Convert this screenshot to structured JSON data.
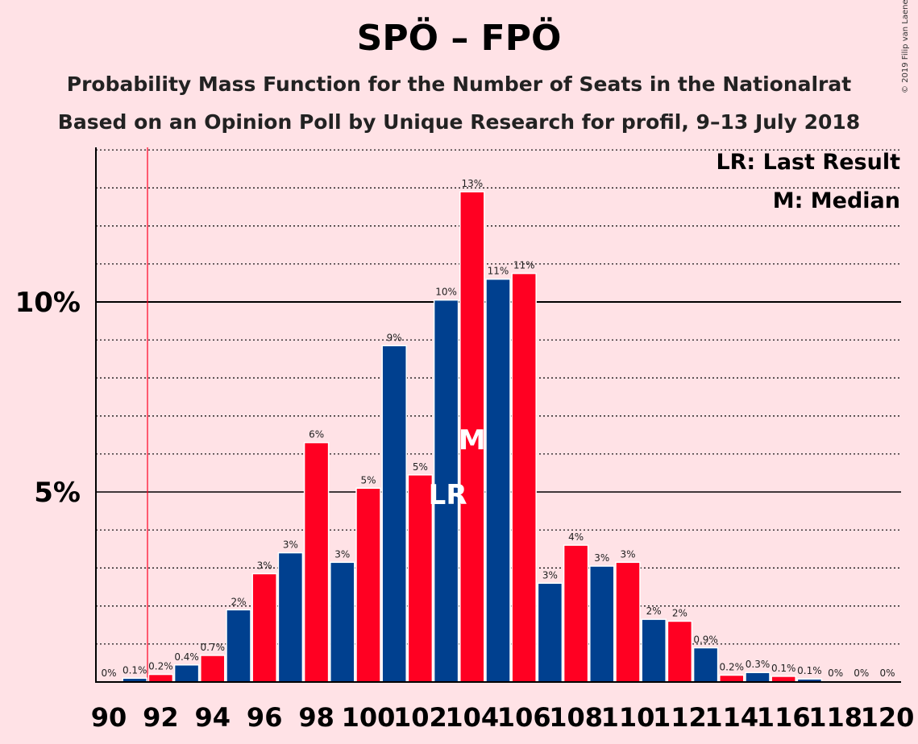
{
  "title": "SPÖ – FPÖ",
  "subtitle1": "Probability Mass Function for the Number of Seats in the Nationalrat",
  "subtitle2": "Based on an Opinion Poll by Unique Research for profil, 9–13 July 2018",
  "copyright": "© 2019 Filip van Laenen",
  "colors": {
    "blue": "#00408F",
    "red": "#FF0022",
    "background": "#FFE2E6"
  },
  "chart_data": {
    "type": "bar",
    "xlabel": "",
    "ylabel": "",
    "ylim": [
      0,
      14
    ],
    "y_ticks": [
      {
        "value": 5,
        "label": "5%"
      },
      {
        "value": 10,
        "label": "10%"
      }
    ],
    "x_tick_labels": [
      "90",
      "92",
      "94",
      "96",
      "98",
      "100",
      "102",
      "104",
      "106",
      "108",
      "110",
      "112",
      "114",
      "116",
      "118",
      "120"
    ],
    "x": [
      90,
      91,
      92,
      93,
      94,
      95,
      96,
      97,
      98,
      99,
      100,
      101,
      102,
      103,
      104,
      105,
      106,
      107,
      108,
      109,
      110,
      111,
      112,
      113,
      114,
      115,
      116,
      117,
      118,
      119,
      120
    ],
    "values": [
      0,
      0.1,
      0.2,
      0.45,
      0.7,
      1.9,
      2.85,
      3.4,
      6.3,
      3.15,
      5.1,
      8.85,
      5.45,
      10.05,
      12.9,
      10.6,
      10.75,
      2.6,
      3.6,
      3.05,
      3.15,
      1.65,
      1.6,
      0.9,
      0.18,
      0.25,
      0.15,
      0.08,
      0,
      0,
      0
    ],
    "labels": [
      "0%",
      "0.1%",
      "0.2%",
      "0.4%",
      "0.7%",
      "2%",
      "3%",
      "3%",
      "6%",
      "3%",
      "5%",
      "9%",
      "5%",
      "10%",
      "13%",
      "11%",
      "11%",
      "3%",
      "4%",
      "3%",
      "3%",
      "2%",
      "2%",
      "0.9%",
      "0.2%",
      "0.3%",
      "0.1%",
      "0.1%",
      "0%",
      "0%",
      "0%"
    ],
    "last_result": 91,
    "median": 104,
    "lr_marker": "LR",
    "median_marker": "M",
    "legend": [
      "LR: Last Result",
      "M: Median"
    ],
    "legend_position": "top-right",
    "grid": true
  }
}
